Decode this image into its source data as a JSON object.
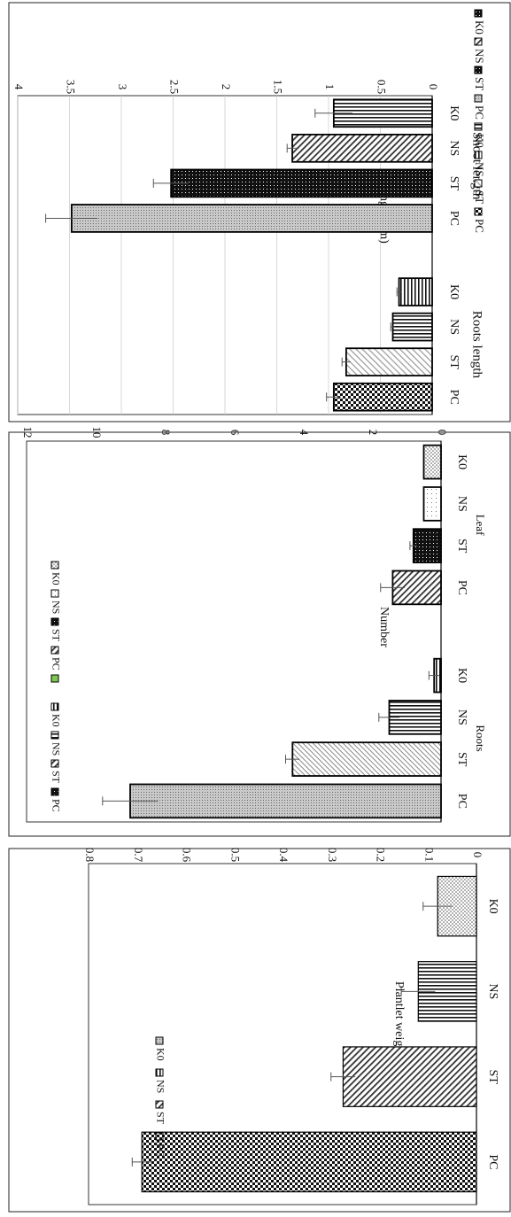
{
  "chart_data": [
    {
      "type": "bar",
      "ylabel": "Plantlet  weigth (g)",
      "ylim": [
        0,
        0.8
      ],
      "yticks": [
        "0",
        "0.1",
        "0.2",
        "0.3",
        "0.4",
        "0.5",
        "0.6",
        "0.7",
        "0.8"
      ],
      "categories": [
        "K0",
        "NS",
        "ST",
        "PC"
      ],
      "values": [
        0.08,
        0.12,
        0.275,
        0.69
      ],
      "errors": [
        0.03,
        0.035,
        0.025,
        0.02
      ],
      "grid": false,
      "legend": {
        "position": "top-left",
        "entries": [
          "K0",
          "NS",
          "ST",
          "PC"
        ]
      }
    },
    {
      "type": "bar",
      "ylabel": "Number",
      "ylim": [
        0,
        12
      ],
      "yticks": [
        "0",
        "2",
        "4",
        "6",
        "8",
        "10",
        "12"
      ],
      "groups": [
        "Leaf",
        "Roots"
      ],
      "categories": [
        "K0",
        "NS",
        "ST",
        "PC",
        "K0",
        "NS",
        "ST",
        "PC"
      ],
      "values": [
        0.5,
        0.5,
        0.8,
        1.4,
        0.2,
        1.5,
        4.3,
        9.0
      ],
      "errors": [
        0,
        0,
        0.1,
        0.35,
        0.15,
        0.3,
        0.2,
        0.8
      ],
      "grid": false,
      "legend": {
        "position": "top-left",
        "entries": [
          "K0",
          "NS",
          "ST",
          "PC",
          "",
          "K0",
          "NS",
          "ST",
          "PC"
        ]
      }
    },
    {
      "type": "bar",
      "ylabel": "Length   (cm)",
      "ylim": [
        0,
        4
      ],
      "yticks": [
        "0",
        "0.5",
        "1",
        "1.5",
        "2",
        "2.5",
        "3",
        "3.5",
        "4"
      ],
      "groups": [
        "Shoot length",
        "Roots length"
      ],
      "categories": [
        "K0",
        "NS",
        "ST",
        "PC",
        "K0",
        "NS",
        "ST",
        "PC"
      ],
      "values": [
        0.95,
        1.35,
        2.52,
        3.48,
        0.32,
        0.38,
        0.83,
        0.95
      ],
      "errors": [
        0.18,
        0.05,
        0.17,
        0.25,
        0.02,
        0.02,
        0.04,
        0.07
      ],
      "grid": true,
      "legend": {
        "position": "right",
        "entries": [
          "K0",
          "NS",
          "ST",
          "PC",
          "K0",
          "NS",
          "ST",
          "PC"
        ]
      }
    }
  ]
}
